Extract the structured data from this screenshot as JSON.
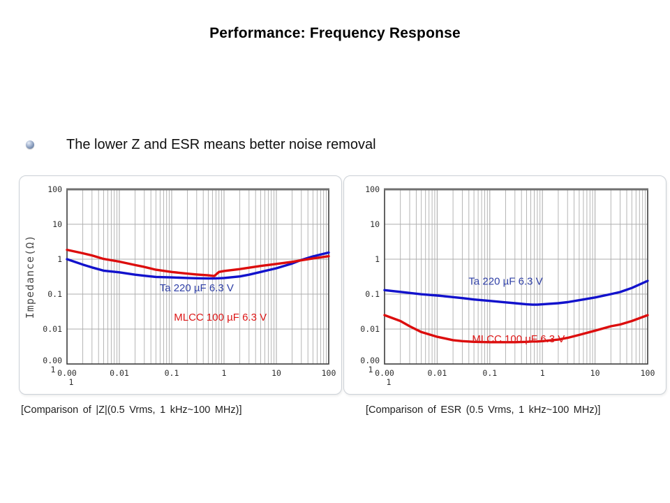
{
  "slide": {
    "title": "Performance: Frequency Response",
    "bullet_text": "The lower Z and ESR means better noise removal"
  },
  "colors": {
    "ta_curve": "#1212cc",
    "mlcc_curve": "#dc0d0d",
    "ta_label_text": "#2e3fa6",
    "mlcc_label_text": "#dc1616",
    "grid": "#adadad",
    "frame": "#3c3c3c",
    "frame_top": "#6f6f6f",
    "tick_text": "#2e2e2e",
    "axis_title_text": "#4a4a4a"
  },
  "chart_data": [
    {
      "type": "line",
      "caption": "[Comparison of |Z|(0.5 Vrms, 1 kHz~100 MHz)]",
      "ylabel": "Impedance(Ω)",
      "xlabel": "",
      "xscale": "log",
      "yscale": "log",
      "xlim": [
        0.001,
        100
      ],
      "ylim": [
        0.001,
        100
      ],
      "grid": {
        "x_minor": true,
        "y_minor": false
      },
      "legend_position": "inline",
      "xticks": [
        {
          "v": 0.001,
          "label": "0.00",
          "label2": "1"
        },
        {
          "v": 0.01,
          "label": "0.01"
        },
        {
          "v": 0.1,
          "label": "0.1"
        },
        {
          "v": 1,
          "label": "1"
        },
        {
          "v": 10,
          "label": "10"
        },
        {
          "v": 100,
          "label": "100"
        }
      ],
      "yticks": [
        {
          "v": 100,
          "label": "100"
        },
        {
          "v": 10,
          "label": "10"
        },
        {
          "v": 1,
          "label": "1"
        },
        {
          "v": 0.1,
          "label": "0.1"
        },
        {
          "v": 0.01,
          "label": "0.01"
        },
        {
          "v": 0.001,
          "label": "0.00",
          "label2": "1"
        }
      ],
      "x_mhz": [
        0.001,
        0.002,
        0.003,
        0.005,
        0.01,
        0.02,
        0.03,
        0.05,
        0.1,
        0.2,
        0.3,
        0.5,
        0.65,
        0.8,
        1,
        2,
        3,
        5,
        10,
        20,
        30,
        50,
        100
      ],
      "series": [
        {
          "name": "Ta 220 µF 6.3 V",
          "color": "#1212cc",
          "y": [
            1.0,
            0.7,
            0.58,
            0.47,
            0.42,
            0.36,
            0.335,
            0.31,
            0.3,
            0.29,
            0.285,
            0.28,
            0.28,
            0.285,
            0.29,
            0.32,
            0.36,
            0.43,
            0.55,
            0.75,
            0.95,
            1.2,
            1.55
          ],
          "label": {
            "text": "Ta 220 µF 6.3 V",
            "x": 0.3,
            "y": 0.15,
            "color": "#2e3fa6"
          }
        },
        {
          "name": "MLCC 100 µF 6.3 V",
          "color": "#dc0d0d",
          "y": [
            1.85,
            1.48,
            1.28,
            1.02,
            0.85,
            0.68,
            0.6,
            0.5,
            0.43,
            0.385,
            0.365,
            0.345,
            0.33,
            0.43,
            0.46,
            0.52,
            0.57,
            0.64,
            0.73,
            0.84,
            0.93,
            1.05,
            1.22
          ],
          "label": {
            "text": "MLCC 100 µF 6.3 V",
            "x": 0.85,
            "y": 0.022,
            "color": "#dc1616"
          }
        }
      ]
    },
    {
      "type": "line",
      "caption": "[Comparison of ESR (0.5 Vrms, 1 kHz~100 MHz)]",
      "ylabel": "",
      "xlabel": "",
      "xscale": "log",
      "yscale": "log",
      "xlim": [
        0.001,
        100
      ],
      "ylim": [
        0.001,
        100
      ],
      "grid": {
        "x_minor": true,
        "y_minor": false
      },
      "legend_position": "inline",
      "xticks": [
        {
          "v": 0.001,
          "label": "0.00",
          "label2": "1"
        },
        {
          "v": 0.01,
          "label": "0.01"
        },
        {
          "v": 0.1,
          "label": "0.1"
        },
        {
          "v": 1,
          "label": "1"
        },
        {
          "v": 10,
          "label": "10"
        },
        {
          "v": 100,
          "label": "100"
        }
      ],
      "yticks": [
        {
          "v": 100,
          "label": "100"
        },
        {
          "v": 10,
          "label": "10"
        },
        {
          "v": 1,
          "label": "1"
        },
        {
          "v": 0.1,
          "label": "0.1"
        },
        {
          "v": 0.01,
          "label": "0.01"
        },
        {
          "v": 0.001,
          "label": "0.00",
          "label2": "1"
        }
      ],
      "x_mhz": [
        0.001,
        0.002,
        0.003,
        0.005,
        0.01,
        0.02,
        0.03,
        0.05,
        0.1,
        0.2,
        0.3,
        0.5,
        0.65,
        0.8,
        1,
        2,
        3,
        5,
        10,
        20,
        30,
        50,
        100
      ],
      "series": [
        {
          "name": "Ta 220 µF 6.3 V",
          "color": "#1212cc",
          "y": [
            0.13,
            0.116,
            0.108,
            0.099,
            0.091,
            0.082,
            0.077,
            0.07,
            0.064,
            0.058,
            0.055,
            0.051,
            0.05,
            0.05,
            0.051,
            0.055,
            0.059,
            0.067,
            0.08,
            0.1,
            0.115,
            0.15,
            0.24
          ],
          "label": {
            "text": "Ta 220 µF 6.3 V",
            "x": 0.2,
            "y": 0.235,
            "color": "#2e3fa6"
          }
        },
        {
          "name": "MLCC 100 µF 6.3 V",
          "color": "#dc0d0d",
          "y": [
            0.025,
            0.017,
            0.012,
            0.0082,
            0.006,
            0.0048,
            0.0045,
            0.0043,
            0.0042,
            0.0042,
            0.0042,
            0.0043,
            0.0044,
            0.0044,
            0.0045,
            0.005,
            0.0056,
            0.0068,
            0.009,
            0.012,
            0.0135,
            0.017,
            0.025
          ],
          "label": {
            "text": "MLCC 100 µF 6.3 V",
            "x": 0.35,
            "y": 0.0052,
            "color": "#dc1616"
          }
        }
      ]
    }
  ]
}
